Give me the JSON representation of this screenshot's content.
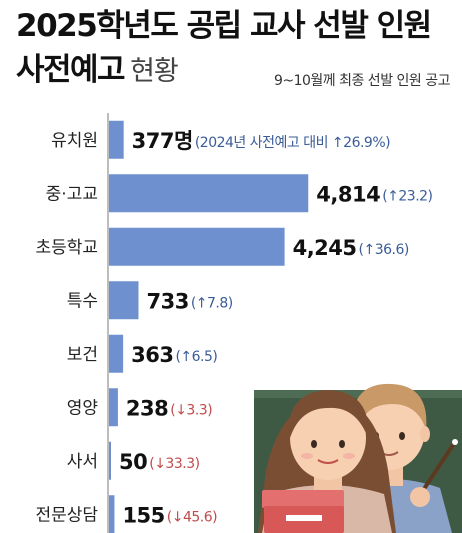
{
  "title_line1": "2025학년도 공립 교사 선발 인원",
  "title_line2_strong": "사전예고",
  "title_line2_light": "현황",
  "subtitle": "9~10월께 최종 선발 인원 공고",
  "illustration": "two-teachers-at-blackboard",
  "chart_data": {
    "type": "bar",
    "orientation": "horizontal",
    "title": "2025학년도 공립 교사 선발 인원 사전예고 현황",
    "subtitle": "9~10월께 최종 선발 인원 공고",
    "categories": [
      "유치원",
      "중·고교",
      "초등학교",
      "특수",
      "보건",
      "영양",
      "사서",
      "전문상담"
    ],
    "values": [
      377,
      4814,
      4245,
      733,
      363,
      238,
      50,
      155
    ],
    "value_labels": [
      "377명",
      "4,814",
      "4,245",
      "733",
      "363",
      "238",
      "50",
      "155"
    ],
    "change_labels": [
      "(2024년 사전예고 대비 ↑26.9%)",
      "(↑23.2)",
      "(↑36.6)",
      "(↑7.8)",
      "(↑6.5)",
      "(↓3.3)",
      "(↓33.3)",
      "(↓45.6)"
    ],
    "change_pct": [
      26.9,
      23.2,
      36.6,
      7.8,
      6.5,
      -3.3,
      -33.3,
      -45.6
    ],
    "xlim": [
      0,
      5000
    ],
    "grid": false,
    "colors": {
      "bar": "#6e90cf",
      "increase": "#3a5c99",
      "decrease": "#c24a4a"
    }
  }
}
